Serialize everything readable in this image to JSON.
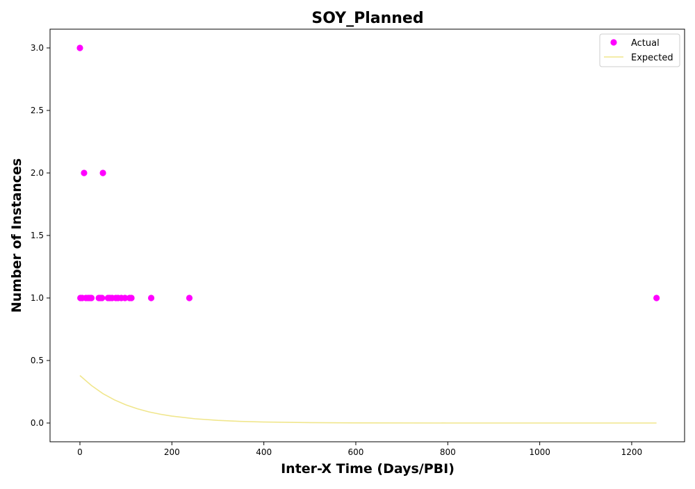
{
  "chart_data": {
    "type": "scatter",
    "title": "SOY_Planned",
    "xlabel": "Inter-X Time (Days/PBI)",
    "ylabel": "Number of Instances",
    "xlim": [
      -65,
      1315
    ],
    "ylim": [
      -0.15,
      3.15
    ],
    "xticks": [
      0,
      200,
      400,
      600,
      800,
      1000,
      1200
    ],
    "yticks": [
      0.0,
      0.5,
      1.0,
      1.5,
      2.0,
      2.5,
      3.0
    ],
    "xtick_labels": [
      "0",
      "200",
      "400",
      "600",
      "800",
      "1000",
      "1200"
    ],
    "ytick_labels": [
      "0.0",
      "0.5",
      "1.0",
      "1.5",
      "2.0",
      "2.5",
      "3.0"
    ],
    "grid": false,
    "legend": {
      "position": "top-right",
      "entries": [
        "Actual",
        "Expected"
      ]
    },
    "series": [
      {
        "name": "Actual",
        "kind": "scatter",
        "color": "#ff00ff",
        "points": [
          {
            "x": 0,
            "y": 3
          },
          {
            "x": 9,
            "y": 2
          },
          {
            "x": 50,
            "y": 2
          },
          {
            "x": 1,
            "y": 1
          },
          {
            "x": 5,
            "y": 1
          },
          {
            "x": 13,
            "y": 1
          },
          {
            "x": 18,
            "y": 1
          },
          {
            "x": 22,
            "y": 1
          },
          {
            "x": 25,
            "y": 1
          },
          {
            "x": 41,
            "y": 1
          },
          {
            "x": 44,
            "y": 1
          },
          {
            "x": 48,
            "y": 1
          },
          {
            "x": 61,
            "y": 1
          },
          {
            "x": 65,
            "y": 1
          },
          {
            "x": 70,
            "y": 1
          },
          {
            "x": 78,
            "y": 1
          },
          {
            "x": 83,
            "y": 1
          },
          {
            "x": 90,
            "y": 1
          },
          {
            "x": 98,
            "y": 1
          },
          {
            "x": 108,
            "y": 1
          },
          {
            "x": 112,
            "y": 1
          },
          {
            "x": 155,
            "y": 1
          },
          {
            "x": 238,
            "y": 1
          },
          {
            "x": 1254,
            "y": 1
          }
        ]
      },
      {
        "name": "Expected",
        "kind": "line",
        "color": "#f0e68c",
        "points": [
          {
            "x": 0,
            "y": 0.38
          },
          {
            "x": 25,
            "y": 0.3
          },
          {
            "x": 50,
            "y": 0.235
          },
          {
            "x": 75,
            "y": 0.185
          },
          {
            "x": 100,
            "y": 0.145
          },
          {
            "x": 125,
            "y": 0.114
          },
          {
            "x": 150,
            "y": 0.089
          },
          {
            "x": 175,
            "y": 0.07
          },
          {
            "x": 200,
            "y": 0.055
          },
          {
            "x": 250,
            "y": 0.034
          },
          {
            "x": 300,
            "y": 0.021
          },
          {
            "x": 350,
            "y": 0.013
          },
          {
            "x": 400,
            "y": 0.008
          },
          {
            "x": 500,
            "y": 0.003
          },
          {
            "x": 600,
            "y": 0.001
          },
          {
            "x": 800,
            "y": 0.0
          },
          {
            "x": 1000,
            "y": 0.0
          },
          {
            "x": 1254,
            "y": 0.0
          }
        ]
      }
    ]
  }
}
